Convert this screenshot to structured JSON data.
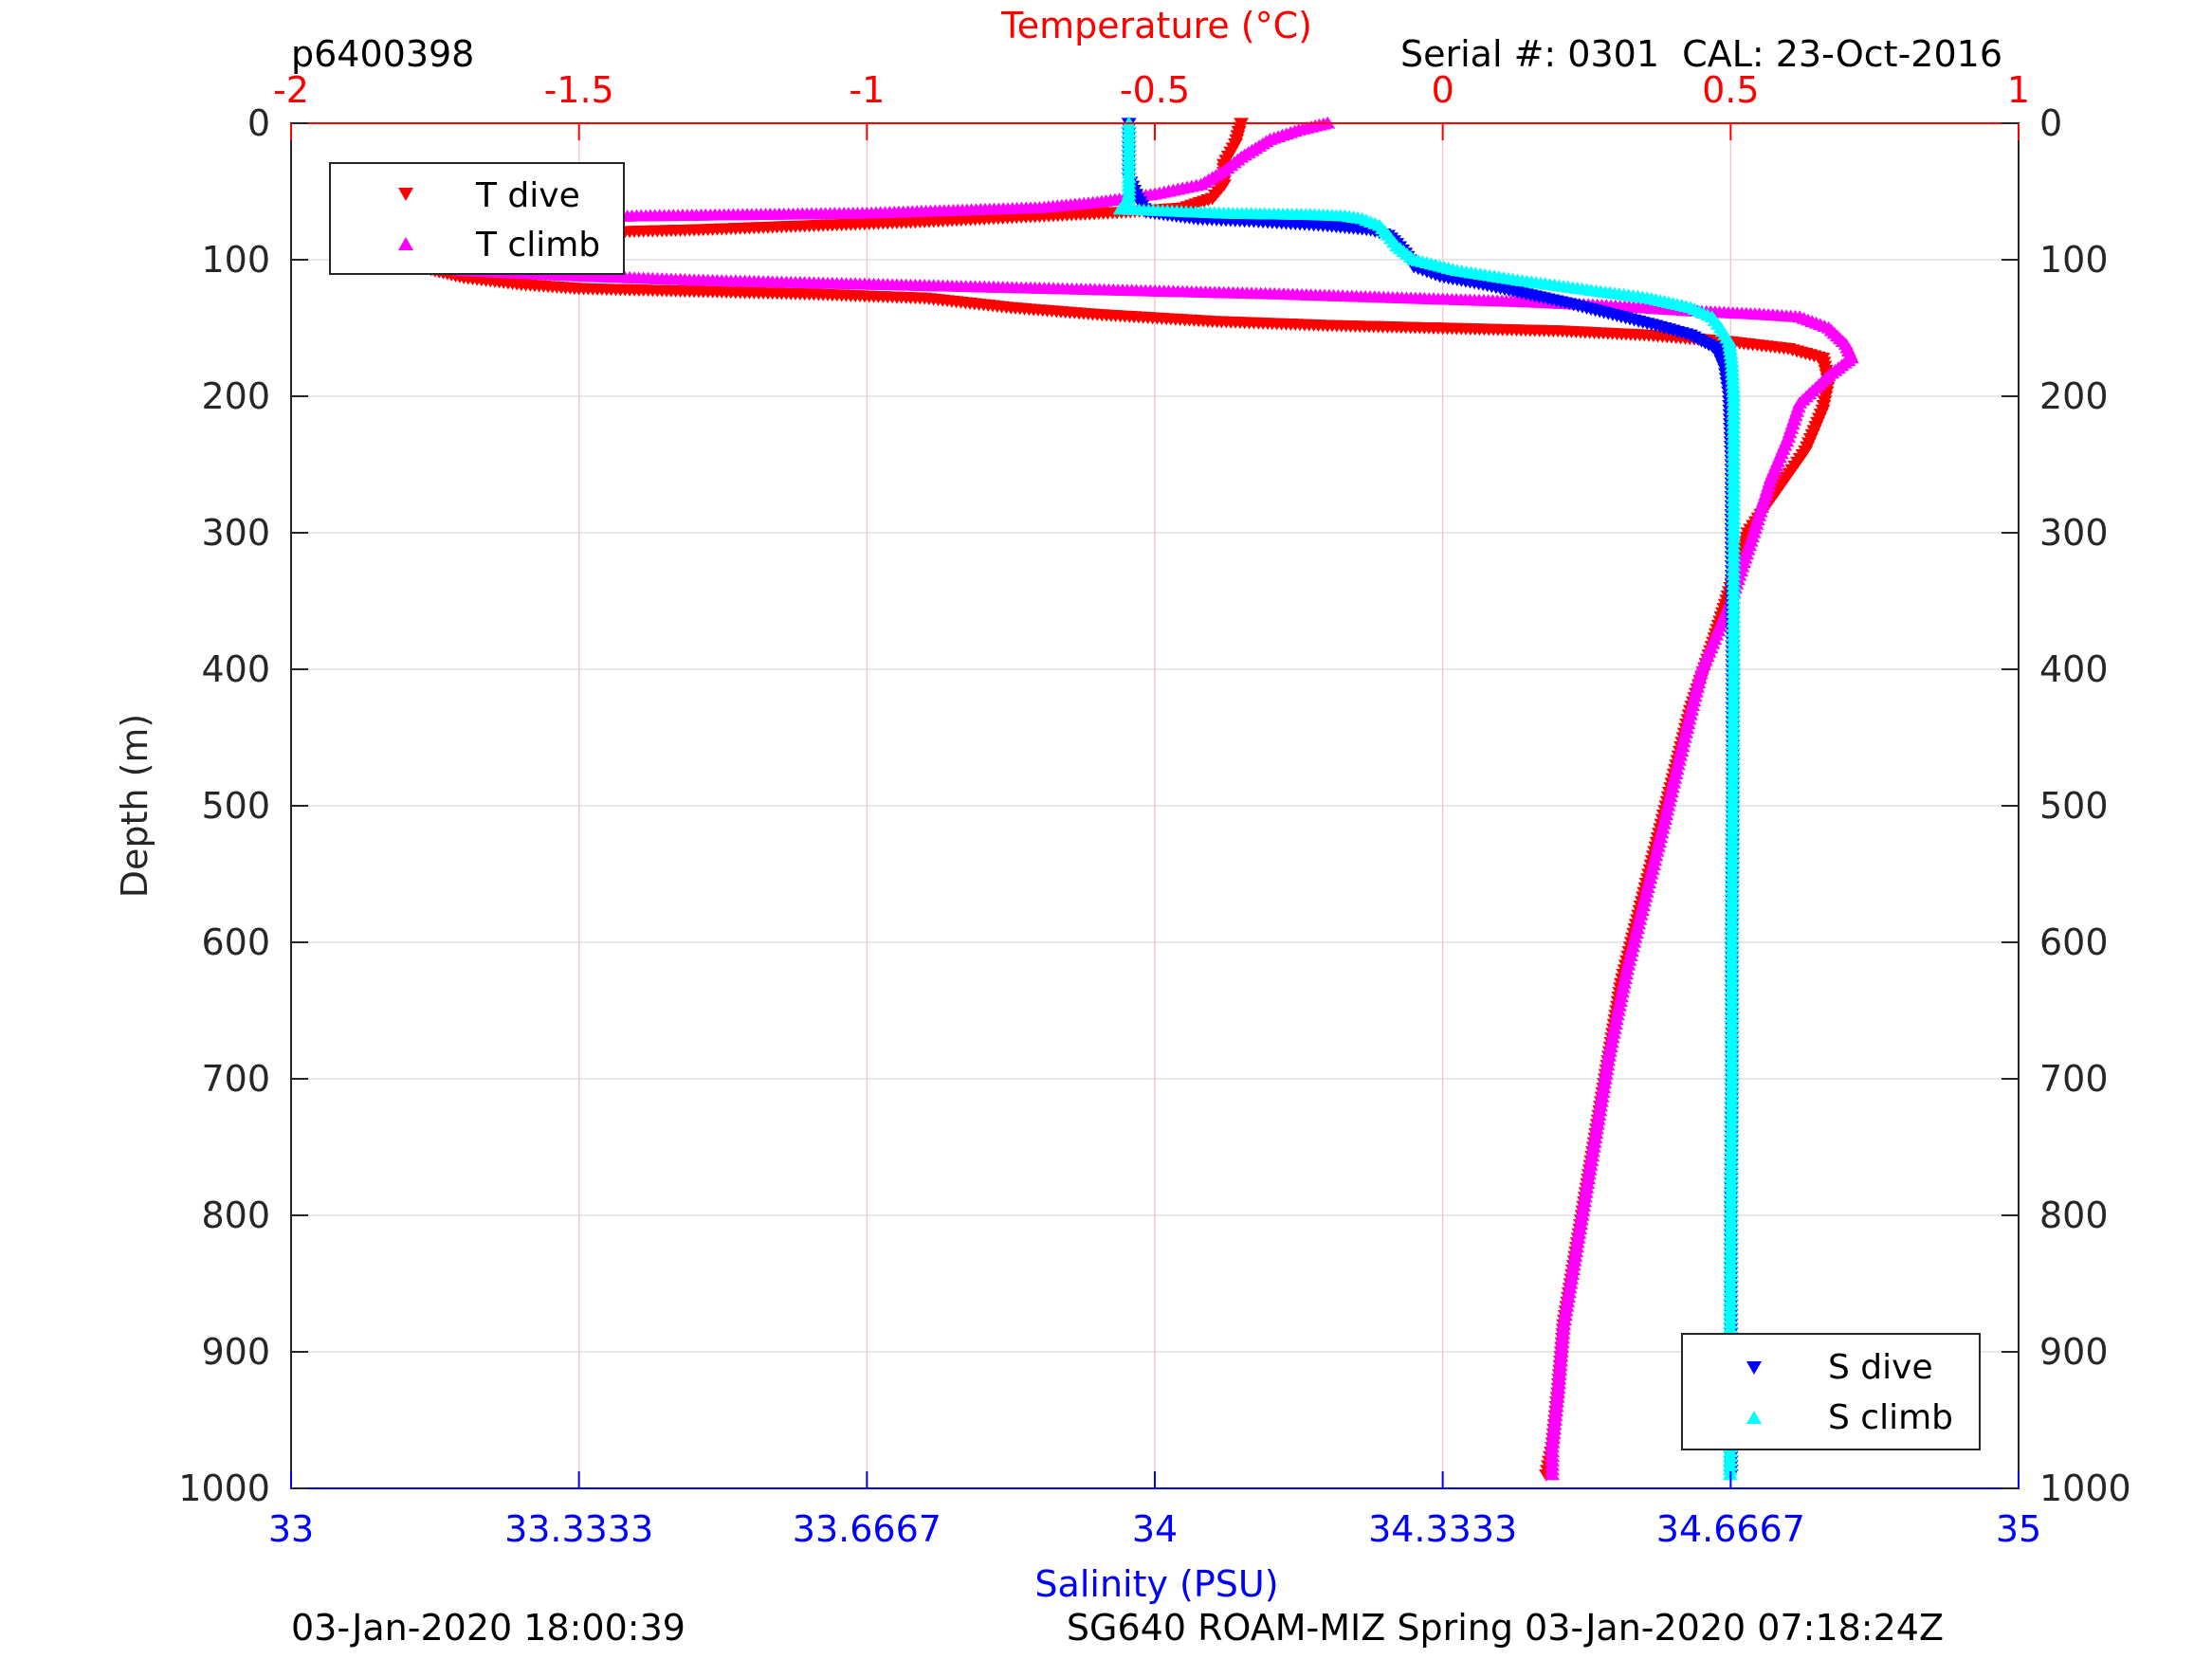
{
  "header": {
    "dive_id": "p6400398",
    "serial": "Serial #: 0301  CAL: 23-Oct-2016"
  },
  "footer": {
    "left": "03-Jan-2020 18:00:39",
    "right": "SG640 ROAM-MIZ Spring 03-Jan-2020 07:18:24Z"
  },
  "chart_data": {
    "type": "scatter",
    "colors": {
      "t_dive": "#ff0000",
      "t_climb": "#ff00ff",
      "s_dive": "#0000ff",
      "s_climb": "#00ffff",
      "temp_axis": "#ff0000",
      "sal_axis": "#0000ff",
      "grid": "#e0e0e0"
    },
    "temperature_axis": {
      "label": "Temperature (°C)",
      "range": [
        -2,
        1
      ],
      "ticks": [
        "-2",
        "-1.5",
        "-1",
        "-0.5",
        "0",
        "0.5",
        "1"
      ],
      "tick_values": [
        -2,
        -1.5,
        -1,
        -0.5,
        0,
        0.5,
        1
      ]
    },
    "salinity_axis": {
      "label": "Salinity (PSU)",
      "range": [
        33,
        35
      ],
      "ticks": [
        "33",
        "33.3333",
        "33.6667",
        "34",
        "34.3333",
        "34.6667",
        "35"
      ],
      "tick_values": [
        33,
        33.3333,
        33.6667,
        34,
        34.3333,
        34.6667,
        35
      ]
    },
    "depth_axis": {
      "label": "Depth (m)",
      "range": [
        0,
        1000
      ],
      "reversed": true,
      "ticks": [
        "0",
        "100",
        "200",
        "300",
        "400",
        "500",
        "600",
        "700",
        "800",
        "900",
        "1000"
      ],
      "tick_values": [
        0,
        100,
        200,
        300,
        400,
        500,
        600,
        700,
        800,
        900,
        1000
      ]
    },
    "grid": true,
    "legends": [
      {
        "placement": "top-left",
        "entries": [
          "T dive",
          "T climb"
        ]
      },
      {
        "placement": "bottom-right",
        "entries": [
          "S dive",
          "S climb"
        ]
      }
    ],
    "series": [
      {
        "name": "T dive",
        "axis": "temperature",
        "marker": "triangle-down",
        "points": [
          [
            -0.35,
            0
          ],
          [
            -0.36,
            15
          ],
          [
            -0.38,
            30
          ],
          [
            -0.38,
            45
          ],
          [
            -0.4,
            55
          ],
          [
            -0.45,
            62
          ],
          [
            -0.55,
            65
          ],
          [
            -0.7,
            68
          ],
          [
            -0.9,
            72
          ],
          [
            -1.1,
            75
          ],
          [
            -1.3,
            78
          ],
          [
            -1.5,
            80
          ],
          [
            -1.7,
            84
          ],
          [
            -1.8,
            90
          ],
          [
            -1.82,
            95
          ],
          [
            -1.8,
            102
          ],
          [
            -1.75,
            108
          ],
          [
            -1.7,
            113
          ],
          [
            -1.6,
            118
          ],
          [
            -1.5,
            121
          ],
          [
            -1.3,
            123
          ],
          [
            -1.1,
            125
          ],
          [
            -0.9,
            128
          ],
          [
            -0.75,
            135
          ],
          [
            -0.6,
            140
          ],
          [
            -0.4,
            145
          ],
          [
            -0.2,
            148
          ],
          [
            0.0,
            150
          ],
          [
            0.2,
            152
          ],
          [
            0.35,
            155
          ],
          [
            0.5,
            160
          ],
          [
            0.6,
            165
          ],
          [
            0.66,
            172
          ],
          [
            0.67,
            190
          ],
          [
            0.66,
            210
          ],
          [
            0.63,
            240
          ],
          [
            0.58,
            270
          ],
          [
            0.53,
            300
          ],
          [
            0.5,
            340
          ],
          [
            0.47,
            380
          ],
          [
            0.43,
            430
          ],
          [
            0.4,
            480
          ],
          [
            0.37,
            530
          ],
          [
            0.34,
            580
          ],
          [
            0.31,
            630
          ],
          [
            0.29,
            680
          ],
          [
            0.27,
            730
          ],
          [
            0.25,
            780
          ],
          [
            0.23,
            830
          ],
          [
            0.21,
            880
          ],
          [
            0.2,
            930
          ],
          [
            0.19,
            970
          ],
          [
            0.18,
            990
          ]
        ]
      },
      {
        "name": "T climb",
        "axis": "temperature",
        "marker": "triangle-up",
        "points": [
          [
            -0.2,
            0
          ],
          [
            -0.25,
            5
          ],
          [
            -0.3,
            12
          ],
          [
            -0.35,
            25
          ],
          [
            -0.38,
            35
          ],
          [
            -0.42,
            45
          ],
          [
            -0.5,
            52
          ],
          [
            -0.6,
            58
          ],
          [
            -0.7,
            62
          ],
          [
            -0.85,
            64
          ],
          [
            -1.0,
            66
          ],
          [
            -1.2,
            67
          ],
          [
            -1.4,
            68
          ],
          [
            -1.6,
            70
          ],
          [
            -1.75,
            75
          ],
          [
            -1.8,
            85
          ],
          [
            -1.82,
            95
          ],
          [
            -1.78,
            103
          ],
          [
            -1.7,
            108
          ],
          [
            -1.5,
            112
          ],
          [
            -1.3,
            115
          ],
          [
            -1.1,
            117
          ],
          [
            -0.9,
            119
          ],
          [
            -0.7,
            121
          ],
          [
            -0.5,
            123
          ],
          [
            -0.3,
            125
          ],
          [
            -0.15,
            127
          ],
          [
            0.0,
            129
          ],
          [
            0.15,
            131
          ],
          [
            0.3,
            134
          ],
          [
            0.45,
            138
          ],
          [
            0.55,
            140
          ],
          [
            0.62,
            142
          ],
          [
            0.67,
            150
          ],
          [
            0.7,
            162
          ],
          [
            0.71,
            172
          ],
          [
            0.67,
            185
          ],
          [
            0.62,
            205
          ],
          [
            0.6,
            230
          ],
          [
            0.57,
            260
          ],
          [
            0.54,
            300
          ],
          [
            0.5,
            350
          ],
          [
            0.45,
            400
          ],
          [
            0.42,
            450
          ],
          [
            0.38,
            520
          ],
          [
            0.35,
            570
          ],
          [
            0.32,
            620
          ],
          [
            0.29,
            680
          ],
          [
            0.27,
            730
          ],
          [
            0.25,
            780
          ],
          [
            0.23,
            830
          ],
          [
            0.21,
            880
          ],
          [
            0.2,
            930
          ],
          [
            0.19,
            970
          ],
          [
            0.19,
            990
          ]
        ]
      },
      {
        "name": "S dive",
        "axis": "salinity",
        "marker": "triangle-down",
        "points": [
          [
            33.97,
            0
          ],
          [
            33.97,
            20
          ],
          [
            33.97,
            40
          ],
          [
            33.98,
            55
          ],
          [
            33.99,
            65
          ],
          [
            34.05,
            70
          ],
          [
            34.12,
            72
          ],
          [
            34.2,
            75
          ],
          [
            34.25,
            78
          ],
          [
            34.27,
            82
          ],
          [
            34.28,
            88
          ],
          [
            34.29,
            95
          ],
          [
            34.3,
            105
          ],
          [
            34.33,
            112
          ],
          [
            34.38,
            118
          ],
          [
            34.43,
            125
          ],
          [
            34.48,
            132
          ],
          [
            34.53,
            140
          ],
          [
            34.58,
            148
          ],
          [
            34.62,
            155
          ],
          [
            34.65,
            165
          ],
          [
            34.66,
            180
          ],
          [
            34.665,
            200
          ],
          [
            34.668,
            250
          ],
          [
            34.668,
            300
          ],
          [
            34.669,
            400
          ],
          [
            34.669,
            500
          ],
          [
            34.668,
            600
          ],
          [
            34.668,
            700
          ],
          [
            34.667,
            800
          ],
          [
            34.667,
            900
          ],
          [
            34.667,
            950
          ],
          [
            34.667,
            990
          ]
        ]
      },
      {
        "name": "S climb",
        "axis": "salinity",
        "marker": "triangle-up",
        "points": [
          [
            33.97,
            0
          ],
          [
            33.97,
            20
          ],
          [
            33.97,
            40
          ],
          [
            33.97,
            55
          ],
          [
            33.96,
            63
          ],
          [
            34.08,
            66
          ],
          [
            34.18,
            67
          ],
          [
            34.22,
            68
          ],
          [
            34.24,
            70
          ],
          [
            34.26,
            75
          ],
          [
            34.27,
            82
          ],
          [
            34.28,
            90
          ],
          [
            34.3,
            100
          ],
          [
            34.35,
            108
          ],
          [
            34.42,
            115
          ],
          [
            34.5,
            122
          ],
          [
            34.57,
            128
          ],
          [
            34.62,
            135
          ],
          [
            34.645,
            142
          ],
          [
            34.655,
            150
          ],
          [
            34.665,
            160
          ],
          [
            34.668,
            175
          ],
          [
            34.67,
            200
          ],
          [
            34.67,
            250
          ],
          [
            34.67,
            300
          ],
          [
            34.67,
            400
          ],
          [
            34.669,
            500
          ],
          [
            34.668,
            600
          ],
          [
            34.668,
            700
          ],
          [
            34.667,
            800
          ],
          [
            34.666,
            900
          ],
          [
            34.666,
            950
          ],
          [
            34.666,
            990
          ]
        ]
      }
    ]
  }
}
